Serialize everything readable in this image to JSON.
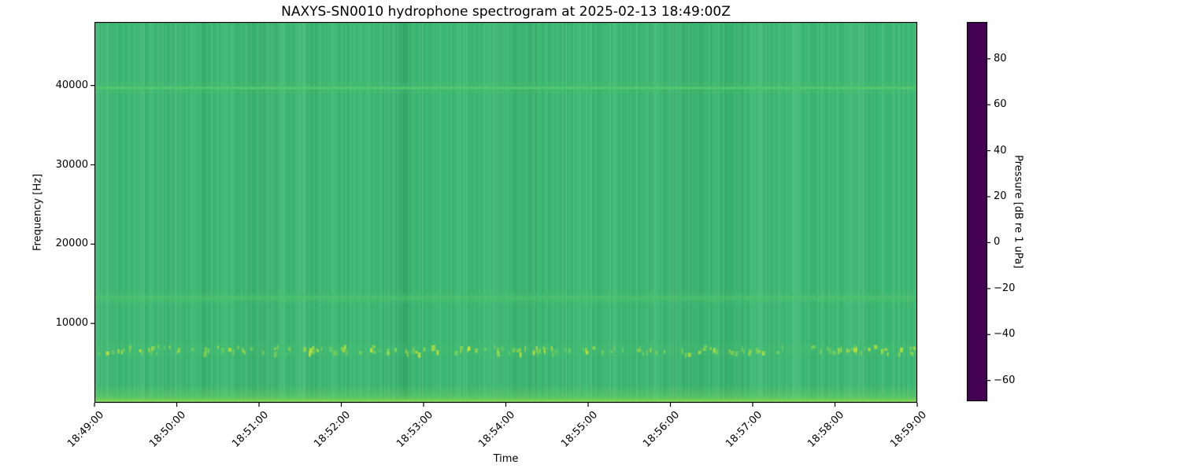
{
  "figure": {
    "background_color": "#ffffff",
    "title": "NAXYS-SN0010 hydrophone spectrogram at 2025-02-13 18:49:00Z"
  },
  "chart_data": {
    "type": "heatmap",
    "subtype": "spectrogram",
    "title": "NAXYS-SN0010 hydrophone spectrogram at 2025-02-13 18:49:00Z",
    "xlabel": "Time",
    "ylabel": "Frequency [Hz]",
    "x_tick_labels": [
      "18:49:00",
      "18:50:00",
      "18:51:00",
      "18:52:00",
      "18:53:00",
      "18:54:00",
      "18:55:00",
      "18:56:00",
      "18:57:00",
      "18:58:00",
      "18:59:00"
    ],
    "x_tick_rotation_deg": 45,
    "y_tick_values_hz": [
      10000,
      20000,
      30000,
      40000
    ],
    "y_tick_labels": [
      "10000",
      "20000",
      "30000",
      "40000"
    ],
    "freq_range_hz": [
      0,
      48000
    ],
    "time_range": [
      "18:49:00",
      "18:59:00"
    ],
    "grid": false,
    "colormap": "viridis",
    "colorbar": {
      "label": "Pressure [dB re 1 uPa]",
      "tick_values": [
        80,
        60,
        40,
        20,
        0,
        -20,
        -40,
        -60
      ],
      "tick_labels": [
        "80",
        "60",
        "40",
        "20",
        "0",
        "−20",
        "−40",
        "−60"
      ],
      "vmin": -69,
      "vmax": 96,
      "position": "right"
    },
    "background_level_db": 42,
    "features": [
      {
        "name": "narrowband continuous tone",
        "freq_hz": 39700,
        "approx_level_db": 52,
        "extent": "thin line across entire time span"
      },
      {
        "name": "diffuse broadband band",
        "freq_hz": 13200,
        "approx_level_db": 50,
        "extent": "continuous slightly brighter band"
      },
      {
        "name": "impulsive click band",
        "freq_hz": 6700,
        "approx_level_db": 63,
        "extent": "intermittent bright speckles across entire time span"
      },
      {
        "name": "low-frequency ambient noise",
        "freq_hz": 800,
        "approx_level_db": 66,
        "extent": "bright strip along bottom edge, all times"
      },
      {
        "name": "vertical striation texture",
        "extent": "fine time-varying columns over whole band, approx +/- 3 dB"
      }
    ],
    "colors": {
      "base_green": "#3db974",
      "band_green": "#52c56d",
      "speckle_yellow_green": "#a8dc3f",
      "bottom_strip": "#7fd556",
      "spine": "#000000",
      "text": "#000000"
    }
  }
}
